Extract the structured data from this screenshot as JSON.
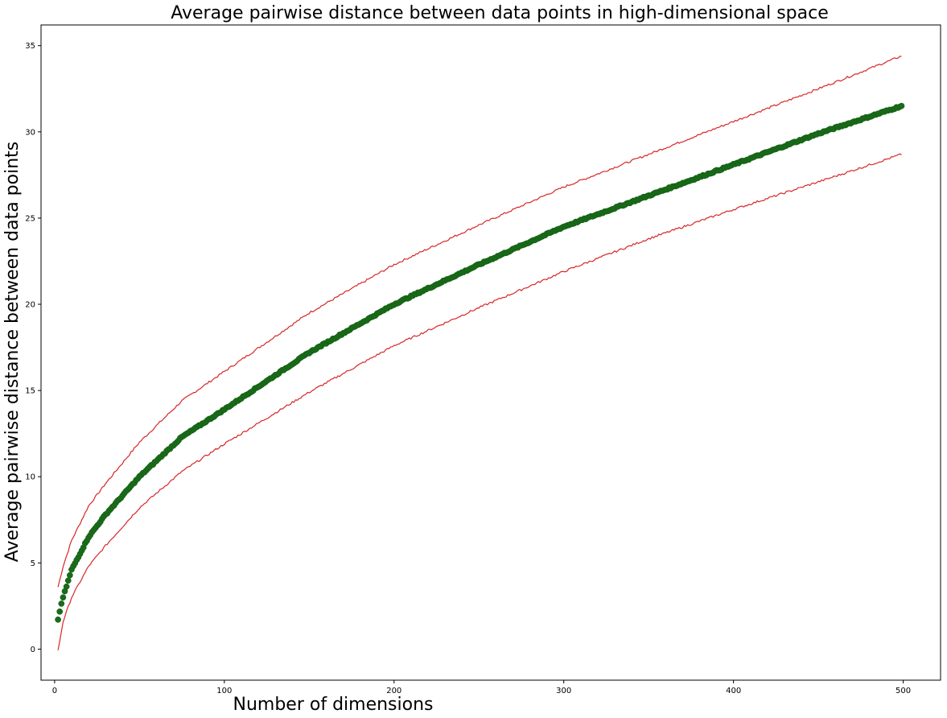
{
  "chart_data": {
    "type": "scatter",
    "title": "Average pairwise distance between data points in high-dimensional space",
    "xlabel": "Number of dimensions",
    "ylabel": "Average pairwise distance between data points",
    "xlim": [
      -8,
      522
    ],
    "ylim": [
      -1.8,
      36.2
    ],
    "xticks": [
      0,
      100,
      200,
      300,
      400,
      500
    ],
    "yticks": [
      0,
      5,
      10,
      15,
      20,
      25,
      30,
      35
    ],
    "grid": false,
    "legend": "none",
    "x_range": [
      2,
      499
    ],
    "series": [
      {
        "role": "mean",
        "style": "markers",
        "color": "#1a6b1a",
        "values_at": [
          [
            2,
            1.7
          ],
          [
            3,
            2.2
          ],
          [
            5,
            3.0
          ],
          [
            10,
            4.6
          ],
          [
            20,
            6.5
          ],
          [
            30,
            7.8
          ],
          [
            50,
            10.0
          ],
          [
            75,
            12.3
          ],
          [
            100,
            13.9
          ],
          [
            150,
            17.2
          ],
          [
            200,
            20.0
          ],
          [
            250,
            22.3
          ],
          [
            300,
            24.5
          ],
          [
            350,
            26.3
          ],
          [
            400,
            28.1
          ],
          [
            450,
            29.9
          ],
          [
            499,
            31.5
          ]
        ]
      },
      {
        "role": "upper band",
        "style": "line",
        "color": "#d62728",
        "values_at": [
          [
            2,
            3.6
          ],
          [
            5,
            4.8
          ],
          [
            10,
            6.3
          ],
          [
            20,
            8.3
          ],
          [
            30,
            9.6
          ],
          [
            50,
            12.0
          ],
          [
            75,
            14.4
          ],
          [
            100,
            16.1
          ],
          [
            150,
            19.5
          ],
          [
            200,
            22.3
          ],
          [
            250,
            24.6
          ],
          [
            300,
            26.8
          ],
          [
            350,
            28.7
          ],
          [
            400,
            30.6
          ],
          [
            450,
            32.5
          ],
          [
            499,
            34.4
          ]
        ]
      },
      {
        "role": "lower band",
        "style": "line",
        "color": "#d62728",
        "values_at": [
          [
            2,
            -0.1
          ],
          [
            5,
            1.6
          ],
          [
            10,
            3.0
          ],
          [
            20,
            4.8
          ],
          [
            30,
            6.0
          ],
          [
            50,
            8.2
          ],
          [
            75,
            10.3
          ],
          [
            100,
            11.9
          ],
          [
            150,
            14.9
          ],
          [
            200,
            17.6
          ],
          [
            250,
            19.8
          ],
          [
            300,
            21.9
          ],
          [
            350,
            23.8
          ],
          [
            400,
            25.5
          ],
          [
            450,
            27.1
          ],
          [
            499,
            28.7
          ]
        ]
      }
    ]
  }
}
